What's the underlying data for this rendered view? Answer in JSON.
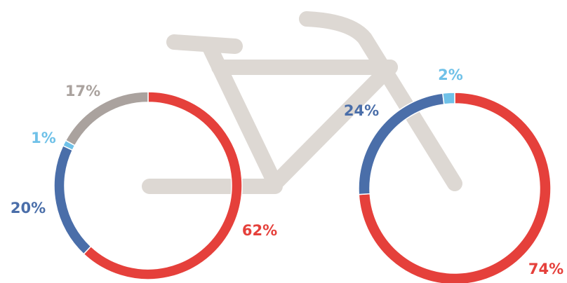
{
  "chart_data": [
    {
      "type": "donut",
      "values": [
        62,
        20,
        1,
        17
      ],
      "value_labels": [
        "62%",
        "20%",
        "1%",
        "17%"
      ],
      "colors": [
        "#e5403b",
        "#4a6ea9",
        "#6fc1e8",
        "#aaa29e"
      ]
    },
    {
      "type": "donut",
      "values": [
        74,
        24,
        2
      ],
      "value_labels": [
        "74%",
        "24%",
        "2%"
      ],
      "colors": [
        "#e5403b",
        "#4a6ea9",
        "#6fc1e8"
      ]
    }
  ]
}
